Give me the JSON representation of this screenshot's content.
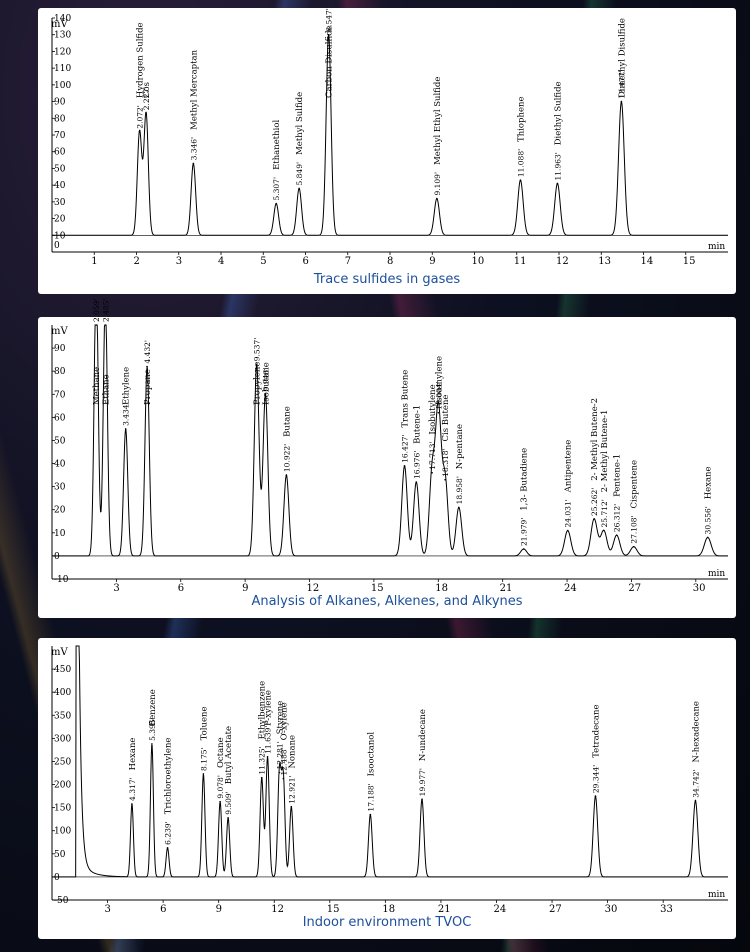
{
  "chart_data": [
    {
      "type": "line",
      "title": "Trace sulfides in gases",
      "yunit": "mV",
      "xunit": "min",
      "xlim": [
        0,
        16
      ],
      "ylim": [
        0,
        140
      ],
      "xticks": [
        1,
        2,
        3,
        4,
        5,
        6,
        7,
        8,
        9,
        10,
        11,
        12,
        13,
        14,
        15
      ],
      "yticks": [
        10,
        20,
        30,
        40,
        50,
        60,
        70,
        80,
        90,
        100,
        110,
        120,
        130,
        140
      ],
      "y_zero_label": "0",
      "baseline": 10,
      "peaks": [
        {
          "rt": 2.072,
          "rt_label": "2.072'",
          "height": 62,
          "name": "Hydrogen Sulfide"
        },
        {
          "rt": 2.227,
          "rt_label": "2.227'",
          "height": 73,
          "name": "Cos"
        },
        {
          "rt": 3.346,
          "rt_label": "3.346'",
          "height": 43,
          "name": "Methyl Mercaptan"
        },
        {
          "rt": 5.307,
          "rt_label": "5.307'",
          "height": 19,
          "name": "Ethanethiol"
        },
        {
          "rt": 5.849,
          "rt_label": "5.849'",
          "height": 28,
          "name": "Methyl Sulfide"
        },
        {
          "rt": 6.547,
          "rt_label": "6.547'",
          "height": 120,
          "name": "Carbon Disulfide"
        },
        {
          "rt": 9.109,
          "rt_label": "9.109'",
          "height": 22,
          "name": "Methyl Ethyl Sulfide"
        },
        {
          "rt": 11.088,
          "rt_label": "11.088'",
          "height": 33,
          "name": "Thiophene"
        },
        {
          "rt": 11.963,
          "rt_label": "11.963'",
          "height": 31,
          "name": "Diethyl Sulfide"
        },
        {
          "rt": 13.477,
          "rt_label": "13.477'",
          "height": 80,
          "name": "Dimethyl Disulfide"
        }
      ]
    },
    {
      "type": "line",
      "title": "Analysis of Alkanes, Alkenes, and Alkynes",
      "yunit": "mV",
      "xunit": "min",
      "xlim": [
        0,
        31.5
      ],
      "ylim": [
        -10,
        100
      ],
      "xticks": [
        3,
        6,
        9,
        12,
        15,
        18,
        21,
        24,
        27,
        30
      ],
      "yticks": [
        -10,
        0,
        10,
        20,
        30,
        40,
        50,
        60,
        70,
        80,
        90
      ],
      "baseline": 0,
      "peaks": [
        {
          "rt": 2.059,
          "rt_label": "2.059'",
          "height": 120,
          "name": "Methane"
        },
        {
          "rt": 2.485,
          "rt_label": "2.485'",
          "height": 110,
          "name": "Ethane"
        },
        {
          "rt": 3.434,
          "rt_label": "3.434'",
          "height": 55,
          "name": "Ethylene"
        },
        {
          "rt": 4.432,
          "rt_label": "4.432'",
          "height": 82,
          "name": "Propane"
        },
        {
          "rt": 9.537,
          "rt_label": "9.537'",
          "height": 83,
          "name": "Propylene"
        },
        {
          "rt": 9.946,
          "rt_label": "9.946'",
          "height": 70,
          "name": "Isobutane"
        },
        {
          "rt": 10.922,
          "rt_label": "10.922'",
          "height": 35,
          "name": "Butane"
        },
        {
          "rt": 16.427,
          "rt_label": "16.427'",
          "height": 39,
          "name": "Trans Butene"
        },
        {
          "rt": 16.976,
          "rt_label": "16.976'",
          "height": 32,
          "name": "Butene-1"
        },
        {
          "rt": 17.713,
          "rt_label": "17.713'",
          "height": 36,
          "name": "Isobutylene"
        },
        {
          "rt": 18.004,
          "rt_label": "18.004'",
          "height": 62,
          "name": "Isoamylene"
        },
        {
          "rt": 18.318,
          "rt_label": "18.318'",
          "height": 33,
          "name": "Cis Butene"
        },
        {
          "rt": 18.958,
          "rt_label": "18.958'",
          "height": 21,
          "name": "N-pentane"
        },
        {
          "rt": 21.979,
          "rt_label": "21.979'",
          "height": 3,
          "name": "1,3- Butadiene"
        },
        {
          "rt": 24.031,
          "rt_label": "24.031'",
          "height": 11,
          "name": "Antipentene"
        },
        {
          "rt": 25.262,
          "rt_label": "25.262'",
          "height": 16,
          "name": "2- Methyl Butene-2"
        },
        {
          "rt": 25.712,
          "rt_label": "25.712'",
          "height": 11,
          "name": "2- Methyl Butene-1"
        },
        {
          "rt": 26.312,
          "rt_label": "26.312'",
          "height": 9,
          "name": "Pentene-1"
        },
        {
          "rt": 27.108,
          "rt_label": "27.108'",
          "height": 4,
          "name": "Cispentene"
        },
        {
          "rt": 30.556,
          "rt_label": "30.556'",
          "height": 8,
          "name": "Hexane"
        }
      ]
    },
    {
      "type": "line",
      "title": "Indoor environment TVOC",
      "yunit": "mV",
      "xunit": "min",
      "xlim": [
        0,
        36.5
      ],
      "ylim": [
        -50,
        500
      ],
      "xticks": [
        3,
        6,
        9,
        12,
        15,
        18,
        21,
        24,
        27,
        30,
        33
      ],
      "yticks": [
        -50,
        0,
        50,
        100,
        150,
        200,
        250,
        300,
        350,
        400,
        450
      ],
      "baseline": 0,
      "solvent_peak_rt": 1.3,
      "peaks": [
        {
          "rt": 4.317,
          "rt_label": "4.317'",
          "height": 158,
          "name": "Hexane"
        },
        {
          "rt": 5.395,
          "rt_label": "5.395'",
          "height": 288,
          "name": "Benzene"
        },
        {
          "rt": 6.239,
          "rt_label": "6.239'",
          "height": 63,
          "name": "Trichloroethylene"
        },
        {
          "rt": 8.175,
          "rt_label": "8.175'",
          "height": 223,
          "name": "Toluene"
        },
        {
          "rt": 9.078,
          "rt_label": "9.078'",
          "height": 163,
          "name": "Octane"
        },
        {
          "rt": 9.509,
          "rt_label": "9.509'",
          "height": 128,
          "name": "Butyl Acetate"
        },
        {
          "rt": 11.325,
          "rt_label": "11.325'",
          "height": 215,
          "name": "Ethylbenzene"
        },
        {
          "rt": 11.639,
          "rt_label": "11.639'",
          "height": 260,
          "name": "P-xylene"
        },
        {
          "rt": 12.281,
          "rt_label": "12.281'",
          "height": 226,
          "name": "Styrene"
        },
        {
          "rt": 12.488,
          "rt_label": "12.488'",
          "height": 213,
          "name": "O-xylene"
        },
        {
          "rt": 12.921,
          "rt_label": "12.921'",
          "height": 152,
          "name": "Nonane"
        },
        {
          "rt": 17.188,
          "rt_label": "17.188'",
          "height": 135,
          "name": "Isooctanol"
        },
        {
          "rt": 19.977,
          "rt_label": "19.977'",
          "height": 168,
          "name": "N-undecane"
        },
        {
          "rt": 29.344,
          "rt_label": "29.344'",
          "height": 175,
          "name": "Tetradecane"
        },
        {
          "rt": 34.742,
          "rt_label": "34.742'",
          "height": 165,
          "name": "N-hexadecane"
        }
      ]
    }
  ]
}
